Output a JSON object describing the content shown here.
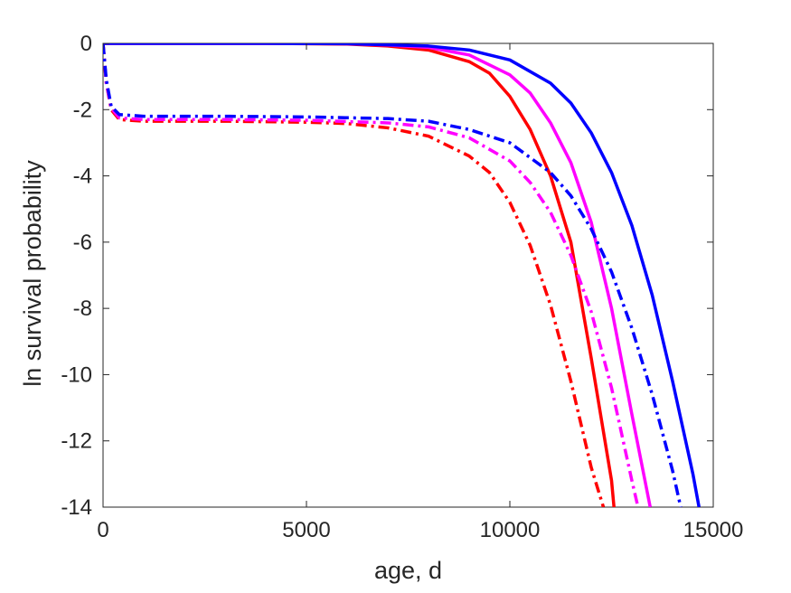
{
  "chart_data": {
    "type": "line",
    "title": "",
    "xlabel": "age, d",
    "ylabel": "ln survival probability",
    "xlim": [
      0,
      15000
    ],
    "ylim": [
      -14,
      0
    ],
    "xticks": [
      0,
      5000,
      10000,
      15000
    ],
    "xtick_labels": [
      "0",
      "5000",
      "10000",
      "15000"
    ],
    "yticks": [
      0,
      -2,
      -4,
      -6,
      -8,
      -10,
      -12,
      -14
    ],
    "ytick_labels": [
      "0",
      "-2",
      "-4",
      "-6",
      "-8",
      "-10",
      "-12",
      "-14"
    ],
    "grid": false,
    "legend": "none",
    "series": [
      {
        "color": "#ff0000",
        "style": "solid",
        "x": [
          0,
          2000,
          4000,
          6000,
          7000,
          8000,
          9000,
          9500,
          10000,
          10500,
          11000,
          11500,
          12000,
          12500,
          12560
        ],
        "y": [
          0,
          0,
          0,
          -0.02,
          -0.08,
          -0.2,
          -0.55,
          -0.9,
          -1.6,
          -2.6,
          -4.0,
          -6.0,
          -9.5,
          -13.2,
          -14
        ]
      },
      {
        "color": "#ff00ff",
        "style": "solid",
        "x": [
          0,
          2000,
          4000,
          6000,
          7000,
          8000,
          9000,
          10000,
          10500,
          11000,
          11500,
          12000,
          12500,
          13000,
          13450
        ],
        "y": [
          0,
          0,
          0,
          -0.01,
          -0.05,
          -0.12,
          -0.35,
          -0.95,
          -1.5,
          -2.4,
          -3.6,
          -5.4,
          -8.0,
          -11.2,
          -14
        ]
      },
      {
        "color": "#0000ff",
        "style": "solid",
        "x": [
          0,
          2000,
          4000,
          6000,
          8000,
          9000,
          10000,
          11000,
          11500,
          12000,
          12500,
          13000,
          13500,
          14000,
          14500,
          14650
        ],
        "y": [
          0,
          0,
          0,
          -0.01,
          -0.08,
          -0.2,
          -0.5,
          -1.2,
          -1.8,
          -2.7,
          -3.9,
          -5.5,
          -7.6,
          -10.2,
          -13.0,
          -14
        ]
      },
      {
        "color": "#ff0000",
        "style": "dashdot",
        "x": [
          0,
          80,
          200,
          400,
          1000,
          3000,
          5000,
          6000,
          7000,
          8000,
          9000,
          9500,
          10000,
          10500,
          11000,
          11500,
          12000,
          12300
        ],
        "y": [
          0,
          -1.2,
          -2.0,
          -2.3,
          -2.35,
          -2.35,
          -2.38,
          -2.42,
          -2.55,
          -2.8,
          -3.4,
          -3.9,
          -4.8,
          -6.1,
          -7.9,
          -10.2,
          -12.8,
          -14
        ]
      },
      {
        "color": "#ff00ff",
        "style": "dashdot",
        "x": [
          0,
          80,
          200,
          400,
          1000,
          3000,
          5000,
          7000,
          8000,
          9000,
          10000,
          10500,
          11000,
          11500,
          12000,
          12500,
          13000,
          13150
        ],
        "y": [
          0,
          -1.2,
          -1.95,
          -2.25,
          -2.3,
          -2.3,
          -2.32,
          -2.4,
          -2.52,
          -2.85,
          -3.55,
          -4.2,
          -5.1,
          -6.4,
          -8.1,
          -10.4,
          -13.2,
          -14
        ]
      },
      {
        "color": "#0000ff",
        "style": "dashdot",
        "x": [
          0,
          80,
          200,
          400,
          1000,
          3000,
          5000,
          7000,
          8000,
          9000,
          10000,
          11000,
          11500,
          12000,
          12500,
          13000,
          13500,
          14000,
          14200
        ],
        "y": [
          0,
          -1.1,
          -1.9,
          -2.15,
          -2.2,
          -2.2,
          -2.22,
          -2.27,
          -2.35,
          -2.6,
          -3.0,
          -3.9,
          -4.6,
          -5.6,
          -6.9,
          -8.6,
          -10.6,
          -12.9,
          -14
        ]
      }
    ]
  }
}
